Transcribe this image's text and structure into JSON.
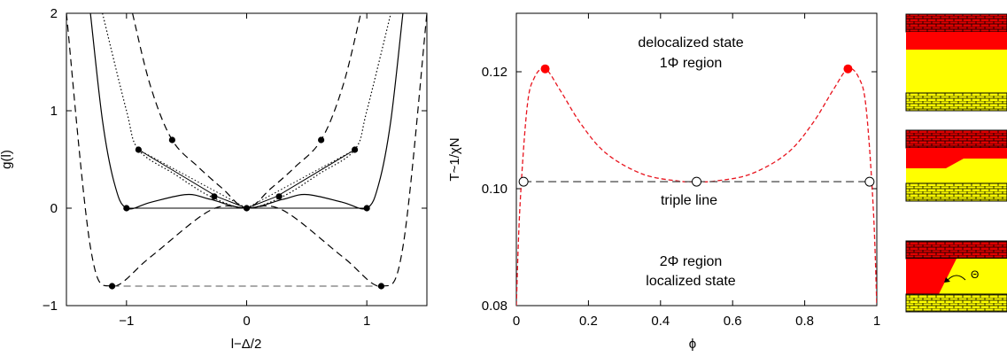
{
  "chart_data": [
    {
      "type": "line",
      "xlabel": "l−Δ/2",
      "ylabel": "g(l)",
      "xlim": [
        -1.5,
        1.5
      ],
      "ylim": [
        -1,
        2
      ],
      "xticks": [
        "−1",
        "0",
        "1"
      ],
      "yticks": [
        "−1",
        "0",
        "1",
        "2"
      ],
      "series": [
        {
          "style": "solid",
          "x": [
            -1.3,
            -1.2,
            -1.1,
            -1.0,
            -0.8,
            -0.5,
            -0.3,
            0,
            0.3,
            0.5,
            0.8,
            1.0,
            1.1,
            1.2,
            1.3
          ],
          "y": [
            2.0,
            0.9,
            0.25,
            0.0,
            0.06,
            0.14,
            0.09,
            0.0,
            0.09,
            0.14,
            0.06,
            0.0,
            0.25,
            0.9,
            2.0
          ]
        },
        {
          "style": "dotted",
          "x": [
            -1.2,
            -1.0,
            -0.9,
            -0.6,
            -0.3,
            0,
            0.3,
            0.6,
            0.9,
            1.0,
            1.2
          ],
          "y": [
            2.0,
            1.0,
            0.6,
            0.35,
            0.12,
            0.0,
            0.12,
            0.35,
            0.6,
            1.0,
            2.0
          ]
        },
        {
          "style": "dashed",
          "x": [
            -1.5,
            -1.3,
            -1.12,
            -0.8,
            -0.3,
            0,
            0.3,
            0.8,
            1.12,
            1.3,
            1.5
          ],
          "y": [
            2.0,
            -0.4,
            -0.8,
            -0.5,
            -0.02,
            0.0,
            -0.02,
            -0.5,
            -0.8,
            -0.4,
            2.0
          ]
        },
        {
          "style": "dashed",
          "x": [
            -0.95,
            -0.8,
            -0.62,
            -0.4,
            -0.2,
            0,
            0.2,
            0.4,
            0.62,
            0.8,
            0.95
          ],
          "y": [
            2.0,
            1.25,
            0.7,
            0.42,
            0.2,
            0.0,
            0.2,
            0.42,
            0.7,
            1.25,
            2.0
          ]
        }
      ],
      "tangent_lines": [
        {
          "style": "solid",
          "x": [
            -1.0,
            1.0
          ],
          "y": [
            0.0,
            0.0
          ]
        },
        {
          "style": "dashed",
          "x": [
            -1.12,
            1.12
          ],
          "y": [
            -0.8,
            -0.8
          ]
        },
        {
          "style": "solid",
          "x": [
            -0.9,
            -0.25,
            0
          ],
          "y": [
            0.6,
            0.12,
            0.0
          ]
        },
        {
          "style": "solid",
          "x": [
            0,
            0.25,
            0.9
          ],
          "y": [
            0.0,
            0.12,
            0.6
          ]
        },
        {
          "style": "dotted",
          "x": [
            -0.9,
            0
          ],
          "y": [
            0.6,
            0.0
          ]
        },
        {
          "style": "dotted",
          "x": [
            0,
            0.9
          ],
          "y": [
            0.0,
            0.6
          ]
        }
      ],
      "points": [
        {
          "x": -1.0,
          "y": 0.0
        },
        {
          "x": 0.0,
          "y": 0.0
        },
        {
          "x": 1.0,
          "y": 0.0
        },
        {
          "x": -1.12,
          "y": -0.8
        },
        {
          "x": 1.12,
          "y": -0.8
        },
        {
          "x": -0.9,
          "y": 0.6
        },
        {
          "x": 0.9,
          "y": 0.6
        },
        {
          "x": -0.62,
          "y": 0.7
        },
        {
          "x": 0.62,
          "y": 0.7
        },
        {
          "x": -0.27,
          "y": 0.12
        },
        {
          "x": 0.27,
          "y": 0.12
        }
      ]
    },
    {
      "type": "line",
      "xlabel": "ϕ",
      "ylabel": "T~1/χN",
      "xlim": [
        0,
        1
      ],
      "ylim": [
        0.08,
        0.13
      ],
      "xticks": [
        "0",
        "0.2",
        "0.4",
        "0.6",
        "0.8",
        "1"
      ],
      "yticks": [
        "0.08",
        "0.10",
        "0.12"
      ],
      "series": [
        {
          "style": "dashed",
          "color": "#e8141e",
          "x": [
            0.0,
            0.01,
            0.03,
            0.05,
            0.08,
            0.12,
            0.18,
            0.25,
            0.35,
            0.45,
            0.5,
            0.55,
            0.65,
            0.75,
            0.82,
            0.88,
            0.92,
            0.95,
            0.97,
            0.99,
            1.0
          ],
          "y": [
            0.08,
            0.097,
            0.114,
            0.119,
            0.1205,
            0.117,
            0.111,
            0.106,
            0.1025,
            0.1013,
            0.1012,
            0.1013,
            0.1025,
            0.106,
            0.111,
            0.117,
            0.1205,
            0.119,
            0.114,
            0.097,
            0.08
          ]
        },
        {
          "style": "dashed",
          "color": "#555555",
          "x": [
            0.02,
            0.98
          ],
          "y": [
            0.1012,
            0.1012
          ]
        }
      ],
      "points_filled": [
        {
          "x": 0.08,
          "y": 0.1205
        },
        {
          "x": 0.92,
          "y": 0.1205
        }
      ],
      "points_open": [
        {
          "x": 0.02,
          "y": 0.1012
        },
        {
          "x": 0.5,
          "y": 0.1012
        },
        {
          "x": 0.98,
          "y": 0.1012
        }
      ],
      "annotations": {
        "top_line1": "delocalized state",
        "top_line2": "1Φ region",
        "middle": "triple line",
        "bottom_line1": "2Φ region",
        "bottom_line2": "localized state"
      }
    }
  ],
  "schematic": {
    "theta_label": "Θ",
    "colors": {
      "brick": "#e00000",
      "red": "#ff0000",
      "yellow": "#ffff00",
      "brick_bottom": "#ffff00",
      "mortar": "#000000"
    }
  }
}
